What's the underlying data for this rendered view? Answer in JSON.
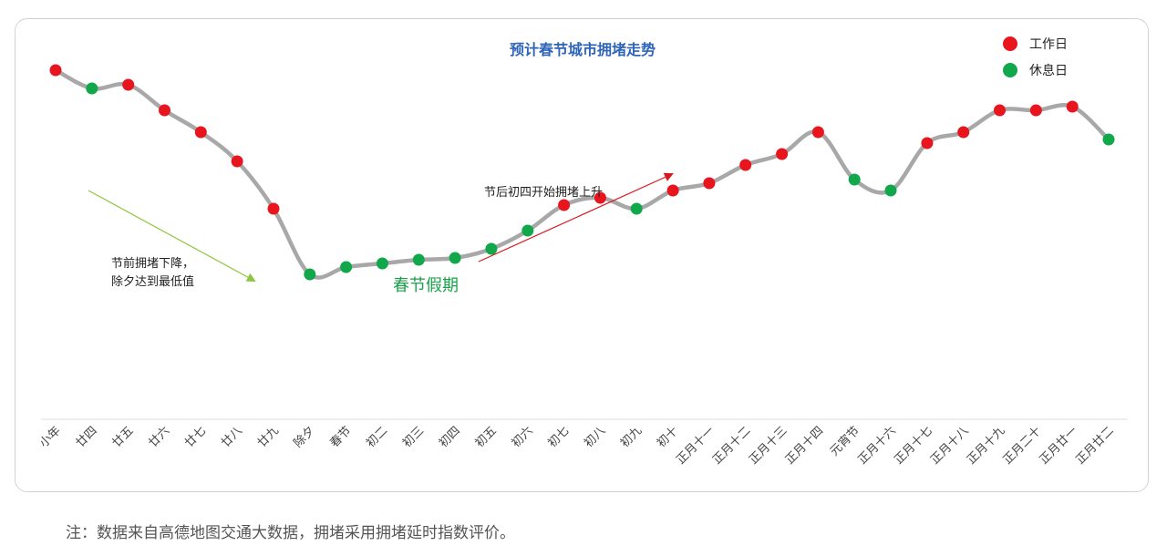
{
  "chart_data": {
    "type": "line",
    "title": "预计春节城市拥堵走势",
    "xlabel": "",
    "ylabel": "",
    "ylim": [
      0,
      100
    ],
    "categories": [
      "小年",
      "廿四",
      "廿五",
      "廿六",
      "廿七",
      "廿八",
      "廿九",
      "除夕",
      "春节",
      "初二",
      "初三",
      "初四",
      "初五",
      "初六",
      "初七",
      "初八",
      "初九",
      "初十",
      "正月十一",
      "正月十二",
      "正月十三",
      "正月十四",
      "元宵节",
      "正月十六",
      "正月十七",
      "正月十八",
      "正月十九",
      "正月二十",
      "正月廿一",
      "正月廿二"
    ],
    "series": [
      {
        "name": "拥堵延时指数",
        "values": [
          91,
          86,
          87,
          80,
          74,
          66,
          53,
          35,
          37,
          38,
          39,
          39.5,
          42,
          47,
          54,
          56,
          53,
          58,
          60,
          65,
          68,
          74,
          61,
          58,
          71,
          74,
          80,
          80,
          81,
          72
        ],
        "day_types": [
          "work",
          "rest",
          "work",
          "work",
          "work",
          "work",
          "work",
          "rest",
          "rest",
          "rest",
          "rest",
          "rest",
          "rest",
          "rest",
          "work",
          "work",
          "rest",
          "work",
          "work",
          "work",
          "work",
          "work",
          "rest",
          "rest",
          "work",
          "work",
          "work",
          "work",
          "work",
          "rest"
        ]
      }
    ],
    "legend": [
      {
        "label": "工作日",
        "color": "#e8141e"
      },
      {
        "label": "休息日",
        "color": "#10a84a"
      }
    ],
    "legend_position": "top-right",
    "annotations": {
      "holiday": "春节假期",
      "pre_holiday_line1": "节前拥堵下降，",
      "pre_holiday_line2": "除夕达到最低值",
      "post_holiday": "节后初四开始拥堵上升"
    },
    "colors": {
      "title": "#2e64b9",
      "line": "#a8a8a8",
      "workday": "#e8141e",
      "restday": "#10a84a",
      "down_arrow": "#8dc641",
      "up_arrow": "#d7191f",
      "holiday_text": "#1aa24a"
    }
  },
  "note": "注：数据来自高德地图交通大数据，拥堵采用拥堵延时指数评价。"
}
